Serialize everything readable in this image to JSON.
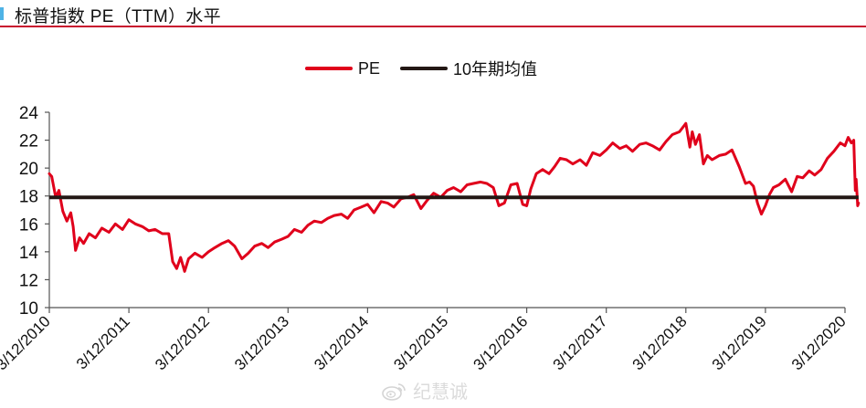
{
  "header": {
    "title": "标普指数 PE（TTM）水平",
    "rule_color": "#c8102e",
    "marker_color": "#4fb3e6"
  },
  "legend": {
    "items": [
      {
        "label": "PE",
        "color": "#e0001b"
      },
      {
        "label": "10年期均值",
        "color": "#231815"
      }
    ]
  },
  "watermark": {
    "text": "纪慧诚",
    "icon": "weibo-icon"
  },
  "chart_data": {
    "type": "line",
    "title": "标普指数 PE（TTM）水平",
    "xlabel": "",
    "ylabel": "",
    "ylim": [
      10,
      24
    ],
    "yticks": [
      10,
      12,
      14,
      16,
      18,
      20,
      22,
      24
    ],
    "xticks": [
      "3/12/2010",
      "3/12/2011",
      "3/12/2012",
      "3/12/2013",
      "3/12/2014",
      "3/12/2015",
      "3/12/2016",
      "3/12/2017",
      "3/12/2018",
      "3/12/2019",
      "3/12/2020"
    ],
    "grid": false,
    "legend_position": "top",
    "series": [
      {
        "name": "PE",
        "color": "#e0001b",
        "x": [
          2010.0,
          2010.03,
          2010.08,
          2010.12,
          2010.17,
          2010.22,
          2010.27,
          2010.3,
          2010.33,
          2010.38,
          2010.43,
          2010.5,
          2010.58,
          2010.66,
          2010.75,
          2010.83,
          2010.92,
          2011.0,
          2011.08,
          2011.17,
          2011.25,
          2011.33,
          2011.42,
          2011.5,
          2011.55,
          2011.6,
          2011.65,
          2011.7,
          2011.75,
          2011.83,
          2011.92,
          2012.0,
          2012.08,
          2012.17,
          2012.25,
          2012.33,
          2012.42,
          2012.5,
          2012.58,
          2012.67,
          2012.75,
          2012.83,
          2012.92,
          2013.0,
          2013.08,
          2013.17,
          2013.25,
          2013.33,
          2013.42,
          2013.5,
          2013.58,
          2013.67,
          2013.75,
          2013.83,
          2013.92,
          2014.0,
          2014.08,
          2014.17,
          2014.25,
          2014.33,
          2014.42,
          2014.5,
          2014.58,
          2014.67,
          2014.75,
          2014.83,
          2014.92,
          2015.0,
          2015.08,
          2015.17,
          2015.25,
          2015.33,
          2015.42,
          2015.5,
          2015.58,
          2015.65,
          2015.72,
          2015.8,
          2015.88,
          2015.95,
          2016.0,
          2016.05,
          2016.12,
          2016.2,
          2016.28,
          2016.35,
          2016.42,
          2016.5,
          2016.58,
          2016.67,
          2016.75,
          2016.83,
          2016.92,
          2017.0,
          2017.08,
          2017.17,
          2017.25,
          2017.33,
          2017.42,
          2017.5,
          2017.58,
          2017.67,
          2017.75,
          2017.83,
          2017.92,
          2018.0,
          2018.05,
          2018.08,
          2018.12,
          2018.17,
          2018.22,
          2018.27,
          2018.33,
          2018.42,
          2018.5,
          2018.58,
          2018.67,
          2018.75,
          2018.8,
          2018.85,
          2018.9,
          2018.95,
          2019.0,
          2019.05,
          2019.1,
          2019.17,
          2019.25,
          2019.33,
          2019.4,
          2019.47,
          2019.55,
          2019.62,
          2019.7,
          2019.78,
          2019.86,
          2019.94,
          2020.0,
          2020.04,
          2020.08,
          2020.11,
          2020.13,
          2020.14,
          2020.16,
          2020.17
        ],
        "values": [
          19.6,
          19.4,
          17.9,
          18.4,
          16.9,
          16.2,
          16.8,
          15.8,
          14.1,
          15.0,
          14.6,
          15.3,
          15.0,
          15.7,
          15.4,
          16.0,
          15.6,
          16.3,
          16.0,
          15.8,
          15.5,
          15.6,
          15.3,
          15.3,
          13.3,
          12.8,
          13.6,
          12.6,
          13.5,
          13.9,
          13.6,
          14.0,
          14.3,
          14.6,
          14.8,
          14.4,
          13.5,
          13.9,
          14.4,
          14.6,
          14.3,
          14.7,
          14.9,
          15.1,
          15.6,
          15.4,
          15.9,
          16.2,
          16.1,
          16.4,
          16.6,
          16.7,
          16.4,
          17.0,
          17.2,
          17.4,
          16.8,
          17.6,
          17.5,
          17.2,
          17.8,
          17.9,
          18.1,
          17.1,
          17.7,
          18.2,
          17.9,
          18.4,
          18.6,
          18.3,
          18.8,
          18.9,
          19.0,
          18.9,
          18.6,
          17.3,
          17.5,
          18.8,
          18.9,
          17.4,
          17.3,
          18.5,
          19.6,
          19.9,
          19.6,
          20.1,
          20.7,
          20.6,
          20.3,
          20.6,
          20.2,
          21.1,
          20.9,
          21.3,
          21.8,
          21.4,
          21.6,
          21.2,
          21.7,
          21.8,
          21.6,
          21.3,
          21.9,
          22.4,
          22.6,
          23.2,
          21.5,
          22.6,
          21.7,
          22.4,
          20.3,
          20.9,
          20.6,
          20.9,
          21.0,
          21.3,
          20.1,
          18.9,
          19.0,
          18.7,
          17.5,
          16.7,
          17.3,
          18.1,
          18.6,
          18.8,
          19.2,
          18.3,
          19.4,
          19.3,
          19.8,
          19.5,
          19.9,
          20.7,
          21.2,
          21.8,
          21.6,
          22.2,
          21.8,
          22.0,
          18.4,
          19.2,
          17.3,
          17.5
        ],
        "note": "approximate values read from chart"
      },
      {
        "name": "10年期均值",
        "color": "#231815",
        "x": [
          2010.0,
          2020.17
        ],
        "values": [
          17.9,
          17.9
        ]
      }
    ]
  }
}
